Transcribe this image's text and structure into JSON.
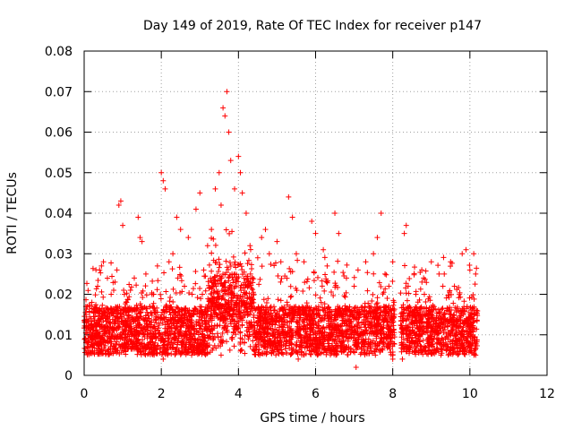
{
  "chart_data": {
    "type": "scatter",
    "title": "Day 149 of 2019, Rate Of TEC Index for receiver p147",
    "xlabel": "GPS time / hours",
    "ylabel": "ROTI / TECUs",
    "xlim": [
      0,
      12
    ],
    "ylim": [
      0,
      0.08
    ],
    "x_ticks": [
      0,
      2,
      4,
      6,
      8,
      10,
      12
    ],
    "y_ticks": [
      0,
      0.01,
      0.02,
      0.03,
      0.04,
      0.05,
      0.06,
      0.07,
      0.08
    ],
    "x_tick_labels": [
      "0",
      "2",
      "4",
      "6",
      "8",
      "10",
      "12"
    ],
    "y_tick_labels": [
      "0",
      "0.01",
      "0.02",
      "0.03",
      "0.04",
      "0.05",
      "0.06",
      "0.07",
      "0.08"
    ],
    "grid": true,
    "marker": "+",
    "color": "#ff0000",
    "data_gap_hours": [
      8.05,
      8.2
    ],
    "data_end_hour": 10.2,
    "series": [
      {
        "name": "ROTI",
        "points": [
          [
            0.05,
            0.015
          ],
          [
            0.1,
            0.012
          ],
          [
            0.2,
            0.018
          ],
          [
            0.3,
            0.009
          ],
          [
            0.35,
            0.022
          ],
          [
            0.4,
            0.026
          ],
          [
            0.45,
            0.027
          ],
          [
            0.5,
            0.028
          ],
          [
            0.6,
            0.014
          ],
          [
            0.7,
            0.02
          ],
          [
            0.8,
            0.023
          ],
          [
            0.85,
            0.026
          ],
          [
            0.9,
            0.042
          ],
          [
            0.95,
            0.043
          ],
          [
            1.0,
            0.037
          ],
          [
            1.1,
            0.018
          ],
          [
            1.2,
            0.021
          ],
          [
            1.3,
            0.024
          ],
          [
            1.4,
            0.039
          ],
          [
            1.45,
            0.034
          ],
          [
            1.5,
            0.033
          ],
          [
            1.6,
            0.025
          ],
          [
            1.7,
            0.017
          ],
          [
            1.8,
            0.02
          ],
          [
            1.9,
            0.027
          ],
          [
            2.0,
            0.05
          ],
          [
            2.05,
            0.048
          ],
          [
            2.1,
            0.046
          ],
          [
            2.2,
            0.028
          ],
          [
            2.3,
            0.03
          ],
          [
            2.4,
            0.039
          ],
          [
            2.5,
            0.036
          ],
          [
            2.6,
            0.022
          ],
          [
            2.7,
            0.034
          ],
          [
            2.8,
            0.02
          ],
          [
            2.9,
            0.041
          ],
          [
            3.0,
            0.045
          ],
          [
            3.1,
            0.026
          ],
          [
            3.2,
            0.032
          ],
          [
            3.3,
            0.036
          ],
          [
            3.4,
            0.046
          ],
          [
            3.5,
            0.05
          ],
          [
            3.55,
            0.042
          ],
          [
            3.6,
            0.066
          ],
          [
            3.65,
            0.064
          ],
          [
            3.7,
            0.07
          ],
          [
            3.75,
            0.06
          ],
          [
            3.8,
            0.053
          ],
          [
            3.9,
            0.046
          ],
          [
            4.0,
            0.054
          ],
          [
            4.05,
            0.05
          ],
          [
            4.1,
            0.045
          ],
          [
            4.2,
            0.04
          ],
          [
            4.3,
            0.032
          ],
          [
            4.5,
            0.029
          ],
          [
            4.6,
            0.034
          ],
          [
            4.7,
            0.036
          ],
          [
            4.8,
            0.03
          ],
          [
            5.0,
            0.033
          ],
          [
            5.1,
            0.028
          ],
          [
            5.3,
            0.044
          ],
          [
            5.4,
            0.039
          ],
          [
            5.5,
            0.03
          ],
          [
            5.7,
            0.028
          ],
          [
            5.9,
            0.038
          ],
          [
            6.0,
            0.035
          ],
          [
            6.2,
            0.031
          ],
          [
            6.3,
            0.027
          ],
          [
            6.5,
            0.04
          ],
          [
            6.6,
            0.035
          ],
          [
            6.8,
            0.024
          ],
          [
            7.0,
            0.022
          ],
          [
            7.1,
            0.026
          ],
          [
            7.3,
            0.028
          ],
          [
            7.5,
            0.03
          ],
          [
            7.6,
            0.034
          ],
          [
            7.7,
            0.04
          ],
          [
            7.8,
            0.025
          ],
          [
            7.9,
            0.022
          ],
          [
            8.0,
            0.028
          ],
          [
            8.3,
            0.035
          ],
          [
            8.35,
            0.037
          ],
          [
            8.4,
            0.022
          ],
          [
            8.6,
            0.02
          ],
          [
            8.8,
            0.024
          ],
          [
            9.0,
            0.028
          ],
          [
            9.2,
            0.025
          ],
          [
            9.3,
            0.022
          ],
          [
            9.5,
            0.028
          ],
          [
            9.6,
            0.022
          ],
          [
            9.8,
            0.03
          ],
          [
            9.9,
            0.031
          ],
          [
            10.0,
            0.026
          ],
          [
            10.1,
            0.03
          ],
          [
            10.15,
            0.025
          ],
          [
            0.15,
            0.006
          ],
          [
            0.55,
            0.008
          ],
          [
            1.05,
            0.007
          ],
          [
            1.55,
            0.006
          ],
          [
            2.05,
            0.004
          ],
          [
            2.55,
            0.006
          ],
          [
            3.05,
            0.007
          ],
          [
            3.55,
            0.005
          ],
          [
            4.05,
            0.006
          ],
          [
            4.55,
            0.005
          ],
          [
            5.05,
            0.006
          ],
          [
            5.55,
            0.004
          ],
          [
            6.05,
            0.005
          ],
          [
            6.55,
            0.006
          ],
          [
            7.05,
            0.002
          ],
          [
            7.55,
            0.005
          ],
          [
            8.0,
            0.004
          ],
          [
            8.25,
            0.004
          ],
          [
            8.75,
            0.006
          ],
          [
            9.25,
            0.005
          ],
          [
            9.75,
            0.006
          ],
          [
            10.15,
            0.005
          ]
        ]
      }
    ]
  }
}
